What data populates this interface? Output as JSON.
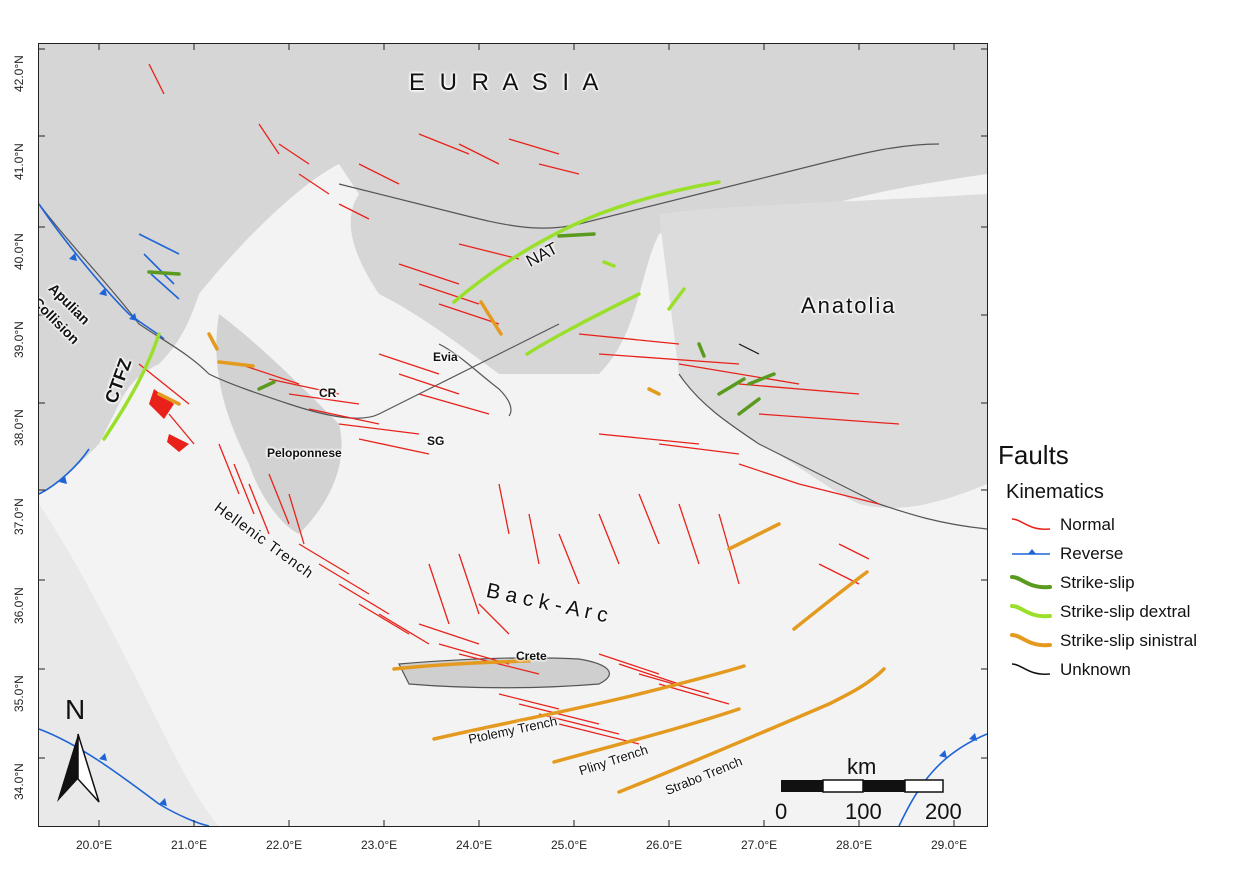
{
  "legend": {
    "title": "Faults",
    "subtitle": "Kinematics",
    "items": [
      {
        "label": "Normal",
        "color": "#e8221b",
        "style": "normal"
      },
      {
        "label": "Reverse",
        "color": "#1f64d6",
        "style": "reverse"
      },
      {
        "label": "Strike-slip",
        "color": "#5a9a1e",
        "style": "thick"
      },
      {
        "label": "Strike-slip dextral",
        "color": "#9ae02a",
        "style": "thick"
      },
      {
        "label": "Strike-slip sinistral",
        "color": "#e39a1f",
        "style": "thick"
      },
      {
        "label": "Unknown",
        "color": "#111111",
        "style": "normal"
      }
    ]
  },
  "labels": {
    "eurasia": "E U R A S I A",
    "anatolia": "Anatolia",
    "apulian": "Apulian",
    "collision": "Collision",
    "ctfz": "CTFZ",
    "nat": "NAT",
    "evia": "Evia",
    "cr": "CR",
    "sg": "SG",
    "peloponnese": "Peloponnese",
    "hellenic_trench": "Hellenic Trench",
    "back_arc": "B a c k - A r c",
    "crete": "Crete",
    "ptolemy": "Ptolemy Trench",
    "pliny": "Pliny Trench",
    "strabo": "Strabo Trench",
    "north": "N"
  },
  "scale_bar": {
    "unit": "km",
    "ticks": [
      "0",
      "100",
      "200"
    ]
  },
  "lat_ticks": [
    "42.0°N",
    "41.0°N",
    "40.0°N",
    "39.0°N",
    "38.0°N",
    "37.0°N",
    "36.0°N",
    "35.0°N",
    "34.0°N"
  ],
  "lon_ticks": [
    "20.0°E",
    "21.0°E",
    "22.0°E",
    "23.0°E",
    "24.0°E",
    "25.0°E",
    "26.0°E",
    "27.0°E",
    "28.0°E",
    "29.0°E"
  ]
}
